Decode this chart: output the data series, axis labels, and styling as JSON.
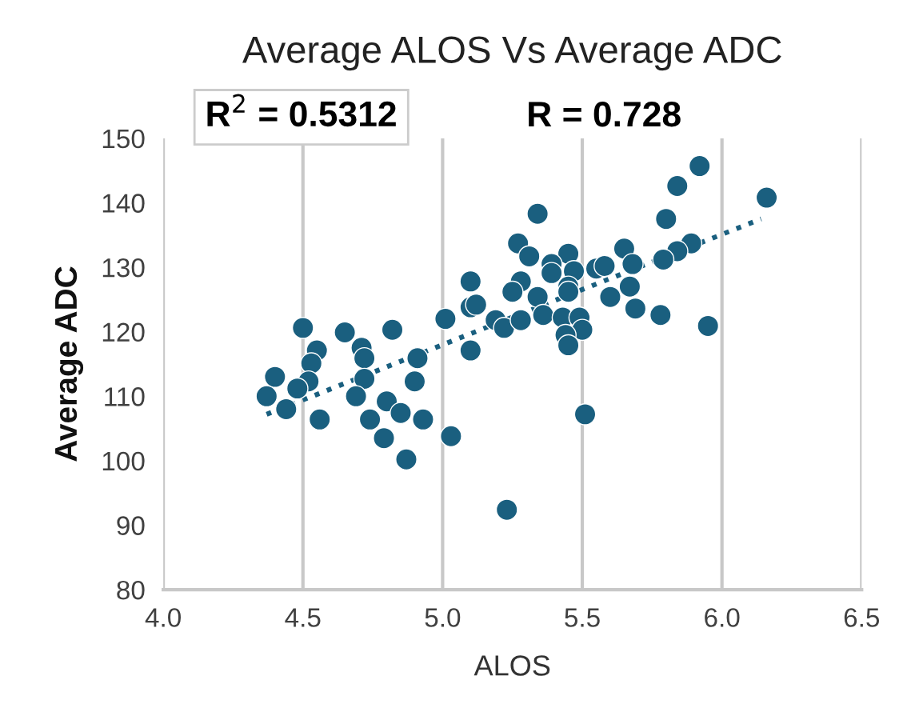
{
  "chart_data": {
    "type": "scatter",
    "title": "Average ALOS Vs Average ADC",
    "xlabel": "ALOS",
    "ylabel": "Average ADC",
    "xlim": [
      4.0,
      6.5
    ],
    "xticks": [
      {
        "value": 4.0,
        "label": "4.0"
      },
      {
        "value": 4.5,
        "label": "4.5"
      },
      {
        "value": 5.0,
        "label": "5.0"
      },
      {
        "value": 5.5,
        "label": "5.5"
      },
      {
        "value": 6.0,
        "label": "6.0"
      },
      {
        "value": 6.5,
        "label": "6.5"
      }
    ],
    "ylim": [
      80,
      150
    ],
    "yticks": [
      80,
      90,
      100,
      110,
      120,
      130,
      140,
      150
    ],
    "grid": "x",
    "marker": "circle",
    "annotations": [
      "R$^{2}$ = 0.5312",
      "R = 0.728"
    ],
    "series": [
      {
        "color": "#1a5f7f",
        "x": [
          4.5,
          4.4,
          4.37,
          4.44,
          4.55,
          4.53,
          4.52,
          4.48,
          4.56,
          4.65,
          4.71,
          4.72,
          4.72,
          4.69,
          4.82,
          4.91,
          4.9,
          4.8,
          4.85,
          4.74,
          4.93,
          4.79,
          4.87,
          5.01,
          5.03,
          5.1,
          5.1,
          5.1,
          5.34,
          5.27,
          5.31,
          5.45,
          5.39,
          5.39,
          5.47,
          5.55,
          5.58,
          5.65,
          5.68,
          5.28,
          5.25,
          5.12,
          5.34,
          5.45,
          5.45,
          5.6,
          5.67,
          5.69,
          5.19,
          5.22,
          5.28,
          5.36,
          5.43,
          5.49,
          5.5,
          5.44,
          5.45,
          5.51,
          5.23,
          5.92,
          5.84,
          5.8,
          5.89,
          5.84,
          5.79,
          6.16,
          5.78,
          5.95
        ],
        "values": [
          120.6,
          113.0,
          110.0,
          108.0,
          117.1,
          115.1,
          112.3,
          111.2,
          106.4,
          119.9,
          117.5,
          115.9,
          112.7,
          110.0,
          120.3,
          115.9,
          112.3,
          109.2,
          107.4,
          106.4,
          106.4,
          103.5,
          100.2,
          122.0,
          103.8,
          127.8,
          123.8,
          117.1,
          138.3,
          133.7,
          131.7,
          132.1,
          130.5,
          129.1,
          129.4,
          129.8,
          130.2,
          132.9,
          130.5,
          127.8,
          126.2,
          124.2,
          125.4,
          127.0,
          126.2,
          125.4,
          127.0,
          123.6,
          121.8,
          120.6,
          121.8,
          122.6,
          122.2,
          122.2,
          120.3,
          119.5,
          117.9,
          107.2,
          92.4,
          145.7,
          142.6,
          137.5,
          133.7,
          132.5,
          131.2,
          140.8,
          122.6,
          120.9
        ]
      },
      {
        "type": "line",
        "color": "#1a5f7f",
        "line_style": "dotted",
        "marker": "none",
        "x": [
          4.37,
          6.14
        ],
        "values": [
          107.2,
          137.5
        ]
      }
    ]
  }
}
